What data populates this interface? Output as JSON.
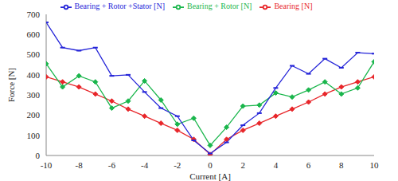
{
  "chart_data": {
    "type": "line",
    "x_label": "Current [A]",
    "y_label": "Force [N]",
    "x": [
      -10,
      -9,
      -8,
      -7,
      -6,
      -5,
      -4,
      -3,
      -2,
      -1,
      0,
      1,
      2,
      3,
      4,
      5,
      6,
      7,
      8,
      9,
      10
    ],
    "xlim": [
      -10,
      10
    ],
    "xticks": [
      -10,
      -8,
      -6,
      -4,
      -2,
      0,
      2,
      4,
      6,
      8,
      10
    ],
    "ylim": [
      0,
      700
    ],
    "yticks": [
      0,
      100,
      200,
      300,
      400,
      500,
      600,
      700
    ],
    "grid": false,
    "legend": "top",
    "series": [
      {
        "name": "Bearing [N]",
        "color": "#e8262a",
        "marker": "diamond",
        "values": [
          390,
          365,
          340,
          305,
          270,
          230,
          195,
          160,
          125,
          80,
          5,
          80,
          125,
          160,
          195,
          230,
          265,
          305,
          340,
          365,
          390
        ]
      },
      {
        "name": "Bearing + Rotor [N]",
        "color": "#1ab64c",
        "marker": "diamond",
        "values": [
          455,
          340,
          395,
          365,
          235,
          270,
          370,
          275,
          155,
          185,
          50,
          140,
          245,
          250,
          310,
          290,
          325,
          365,
          305,
          335,
          465
        ]
      },
      {
        "name": "Bearing + Rotor +Stator [N]",
        "color": "#2424d8",
        "marker": "dash",
        "values": [
          660,
          535,
          520,
          535,
          395,
          400,
          315,
          235,
          195,
          75,
          10,
          65,
          150,
          210,
          335,
          445,
          405,
          480,
          435,
          510,
          505
        ]
      }
    ]
  }
}
